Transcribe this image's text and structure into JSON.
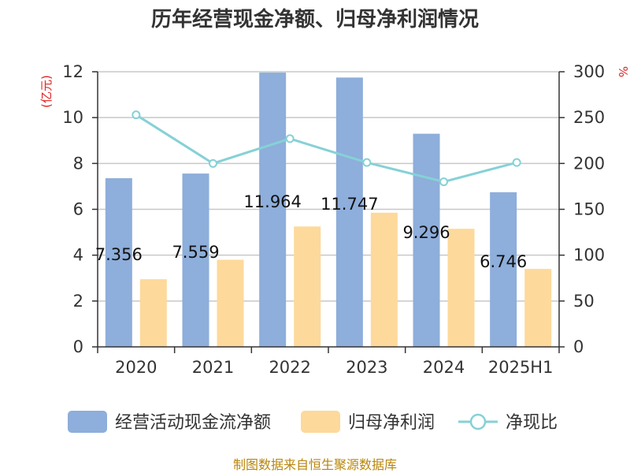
{
  "chart_data": {
    "type": "bar",
    "title": "历年经营现金净额、归母净利润情况",
    "categories": [
      "2020",
      "2021",
      "2022",
      "2023",
      "2024",
      "2025H1"
    ],
    "series": [
      {
        "name": "经营活动现金流净额",
        "kind": "bar",
        "axis": "left",
        "color": "#8eaedb",
        "values": [
          7.356,
          7.559,
          11.964,
          11.747,
          9.296,
          6.746
        ],
        "labels": [
          "7.356",
          "7.559",
          "11.964",
          "11.747",
          "9.296",
          "6.746"
        ]
      },
      {
        "name": "归母净利润",
        "kind": "bar",
        "axis": "left",
        "color": "#fdd99b",
        "values": [
          2.95,
          3.8,
          5.25,
          5.85,
          5.15,
          3.4
        ]
      },
      {
        "name": "净现比",
        "kind": "line",
        "axis": "right",
        "color": "#86d1d6",
        "values": [
          253,
          200,
          227,
          201,
          180,
          201
        ]
      }
    ],
    "y_left": {
      "unit": "(亿元)",
      "ylim": [
        0,
        12
      ],
      "ticks": [
        "0",
        "2",
        "4",
        "6",
        "8",
        "10",
        "12"
      ]
    },
    "y_right": {
      "unit": "%",
      "ylim": [
        0,
        300
      ],
      "ticks": [
        "0",
        "50",
        "100",
        "150",
        "200",
        "250",
        "300"
      ]
    },
    "grid": true,
    "legend_position": "bottom"
  },
  "source": "制图数据来自恒生聚源数据库"
}
